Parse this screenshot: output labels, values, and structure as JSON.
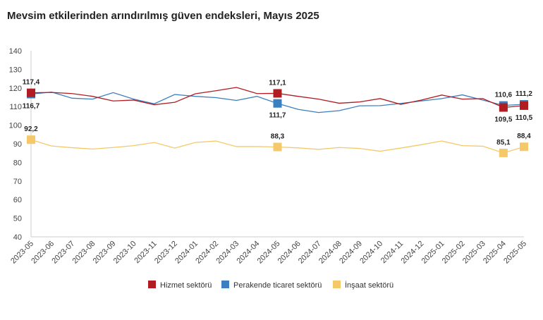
{
  "chart_data": {
    "type": "line",
    "title": "Mevsim etkilerinden arındırılmış güven endeksleri, Mayıs 2025",
    "xlabel": "",
    "ylabel": "",
    "ylim": [
      40,
      140
    ],
    "yticks": [
      40,
      50,
      60,
      70,
      80,
      90,
      100,
      110,
      120,
      130,
      140
    ],
    "grid": false,
    "legend": "bottom",
    "categories": [
      "2023-05",
      "2023-06",
      "2023-07",
      "2023-08",
      "2023-09",
      "2023-10",
      "2023-11",
      "2023-12",
      "2024-01",
      "2024-02",
      "2024-03",
      "2024-04",
      "2024-05",
      "2024-06",
      "2024-07",
      "2024-08",
      "2024-09",
      "2024-10",
      "2024-11",
      "2024-12",
      "2025-01",
      "2025-02",
      "2025-03",
      "2025-04",
      "2025-05"
    ],
    "series": [
      {
        "name": "Hizmet sektörü",
        "color": "#b01c22",
        "values": [
          117.4,
          117.6,
          117.0,
          115.5,
          113.0,
          113.5,
          111.0,
          112.3,
          116.9,
          118.5,
          120.3,
          117.0,
          117.1,
          115.5,
          114.0,
          111.8,
          112.5,
          114.3,
          111.2,
          113.5,
          116.2,
          114.0,
          114.3,
          109.5,
          110.5
        ],
        "labels": [
          {
            "index": 0,
            "text": "117,4",
            "pos": "above"
          },
          {
            "index": 12,
            "text": "117,1",
            "pos": "above"
          },
          {
            "index": 23,
            "text": "109,5",
            "pos": "below"
          },
          {
            "index": 24,
            "text": "110,5",
            "pos": "below"
          }
        ]
      },
      {
        "name": "Perakende ticaret sektörü",
        "color": "#3a7fc0",
        "values": [
          116.7,
          117.8,
          114.5,
          114.0,
          117.5,
          114.0,
          111.5,
          116.5,
          115.5,
          114.8,
          113.3,
          115.5,
          111.7,
          108.5,
          106.8,
          107.8,
          110.4,
          110.5,
          111.7,
          113.0,
          114.3,
          116.3,
          113.5,
          110.6,
          111.2
        ],
        "labels": [
          {
            "index": 0,
            "text": "116,7",
            "pos": "below"
          },
          {
            "index": 12,
            "text": "111,7",
            "pos": "below"
          },
          {
            "index": 23,
            "text": "110,6",
            "pos": "above"
          },
          {
            "index": 24,
            "text": "111,2",
            "pos": "above"
          }
        ]
      },
      {
        "name": "İnşaat sektörü",
        "color": "#f5c96a",
        "values": [
          92.2,
          88.8,
          87.9,
          87.2,
          88.0,
          89.0,
          90.7,
          87.7,
          90.7,
          91.5,
          88.5,
          88.5,
          88.3,
          87.8,
          87.0,
          88.0,
          87.5,
          86.0,
          87.7,
          89.5,
          91.5,
          89.0,
          88.7,
          85.1,
          88.4
        ],
        "labels": [
          {
            "index": 0,
            "text": "92,2",
            "pos": "above"
          },
          {
            "index": 12,
            "text": "88,3",
            "pos": "above"
          },
          {
            "index": 23,
            "text": "85,1",
            "pos": "above"
          },
          {
            "index": 24,
            "text": "88,4",
            "pos": "above"
          }
        ]
      }
    ]
  }
}
